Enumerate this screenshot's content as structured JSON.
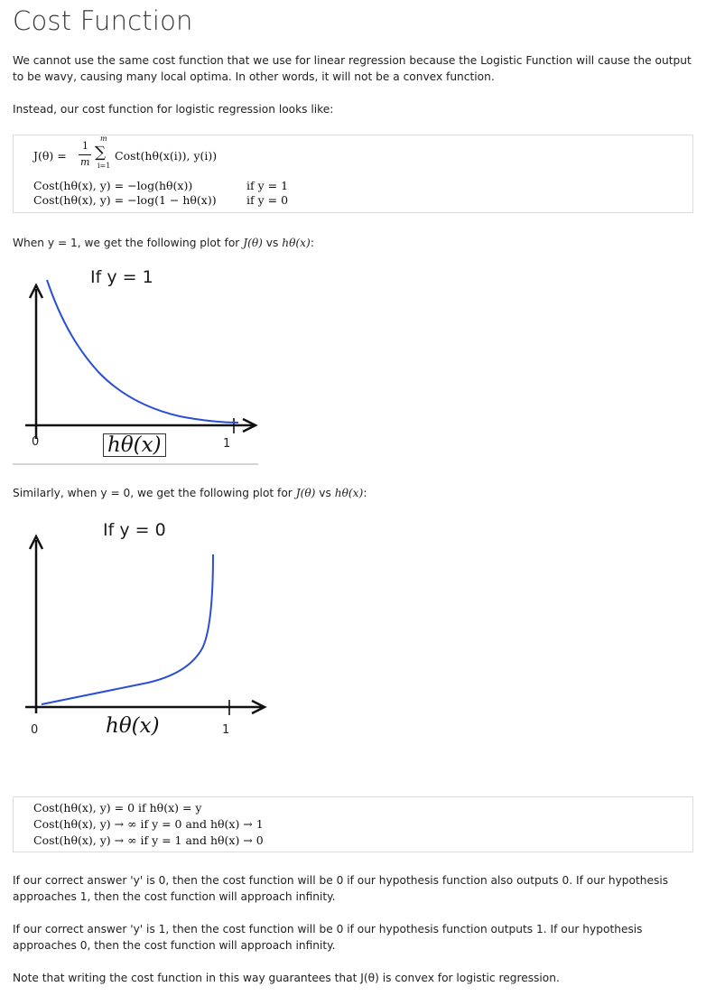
{
  "page_title": "Cost Function",
  "paragraphs": {
    "intro": "We cannot use the same cost function that we use for linear regression because the Logistic Function will cause the output to be wavy, causing many local optima. In other words, it will not be a convex function.",
    "instead": "Instead, our cost function for logistic regression looks like:",
    "plot1_caption_prefix": "When y = 1, we get the following plot for ",
    "plot1_caption_j": "J(θ)",
    "plot1_caption_vs": " vs ",
    "plot1_caption_h": "hθ(x)",
    "plot1_caption_suffix": ":",
    "plot2_caption_prefix": "Similarly, when y = 0, we get the following plot for ",
    "plot2_caption_j": "J(θ)",
    "plot2_caption_vs": " vs ",
    "plot2_caption_h": "hθ(x)",
    "plot2_caption_suffix": ":",
    "y0_explanation": "If our correct answer 'y' is 0, then the cost function will be 0 if our hypothesis function also outputs 0. If our hypothesis approaches 1, then the cost function will approach infinity.",
    "y1_explanation": "If our correct answer 'y' is 1, then the cost function will be 0 if our hypothesis function outputs 1. If our hypothesis approaches 0, then the cost function will approach infinity.",
    "note": "Note that writing the cost function in this way guarantees that J(θ) is convex for logistic regression."
  },
  "formula_block_1": {
    "j_lhs": "J(θ) =",
    "frac_num": "1",
    "frac_den": "m",
    "sum_upper": "m",
    "sum_lower": "i=1",
    "sum_sign": "∑",
    "sum_body": "Cost(hθ(x(i)), y(i))",
    "line2": "Cost(hθ(x), y) = −log(hθ(x))",
    "line2_cond": "if y = 1",
    "line3": "Cost(hθ(x), y) = −log(1 − hθ(x))",
    "line3_cond": "if y = 0"
  },
  "plot_y1": {
    "label": "If y = 1",
    "x_tick_left": "0",
    "x_tick_right": "1",
    "x_var": "hθ(x)"
  },
  "plot_y0": {
    "label": "If y = 0",
    "x_tick_left": "0",
    "x_tick_right": "1",
    "x_var": "hθ(x)"
  },
  "formula_block_2": {
    "line1": "Cost(hθ(x), y) = 0 if hθ(x) = y",
    "line2": "Cost(hθ(x), y) → ∞ if y = 0 and hθ(x) → 1",
    "line3": "Cost(hθ(x), y) → ∞ if y = 1 and hθ(x) → 0"
  },
  "colors": {
    "curve": "#2a4fd6",
    "axis": "#111111",
    "box_border": "#dcdcdc"
  }
}
